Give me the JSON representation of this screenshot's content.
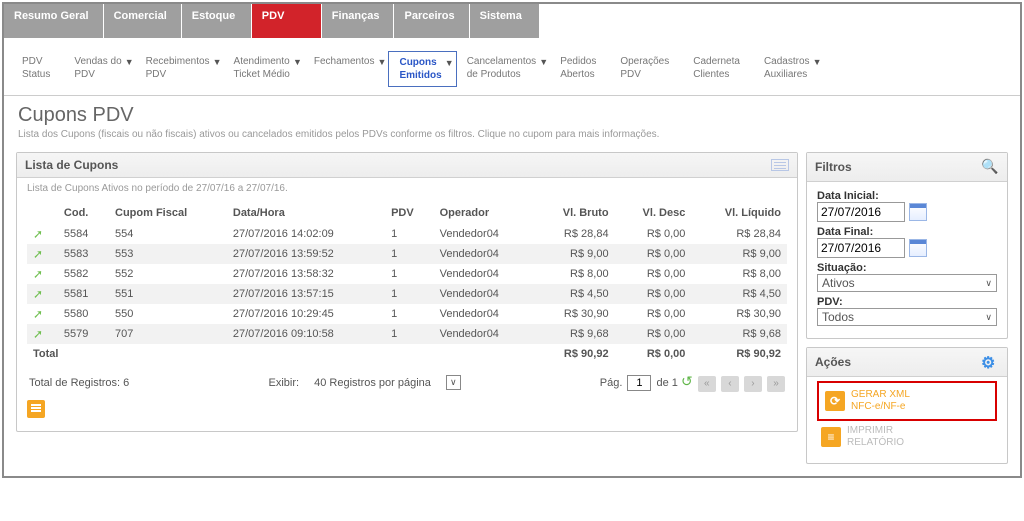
{
  "topnav": {
    "tabs": [
      "Resumo Geral",
      "Comercial",
      "Estoque",
      "PDV",
      "Finanças",
      "Parceiros",
      "Sistema"
    ],
    "active_index": 3
  },
  "subnav": {
    "items": [
      {
        "l1": "PDV",
        "l2": "Status",
        "arrow": false
      },
      {
        "l1": "Vendas do",
        "l2": "PDV",
        "arrow": true
      },
      {
        "l1": "Recebimentos",
        "l2": "PDV",
        "arrow": true
      },
      {
        "l1": "Atendimento",
        "l2": "Ticket Médio",
        "arrow": true
      },
      {
        "l1": "Fechamentos",
        "l2": "",
        "arrow": true
      },
      {
        "l1": "Cupons",
        "l2": "Emitidos",
        "arrow": true,
        "active": true
      },
      {
        "l1": "Cancelamentos",
        "l2": "de Produtos",
        "arrow": true
      },
      {
        "l1": "Pedidos",
        "l2": "Abertos",
        "arrow": false
      },
      {
        "l1": "Operações",
        "l2": "PDV",
        "arrow": false
      },
      {
        "l1": "Caderneta",
        "l2": "Clientes",
        "arrow": false
      },
      {
        "l1": "Cadastros",
        "l2": "Auxiliares",
        "arrow": true
      }
    ]
  },
  "page": {
    "title": "Cupons PDV",
    "subtitle": "Lista dos Cupons (fiscais ou não fiscais) ativos ou cancelados emitidos pelos PDVs conforme os filtros. Clique no cupom para mais informações."
  },
  "list_panel": {
    "title": "Lista de Cupons",
    "subtitle": "Lista de Cupons Ativos no período de 27/07/16 a 27/07/16.",
    "columns": [
      "",
      "Cod.",
      "Cupom Fiscal",
      "Data/Hora",
      "PDV",
      "Operador",
      "Vl. Bruto",
      "Vl. Desc",
      "Vl. Líquido"
    ],
    "rows": [
      {
        "cod": "5584",
        "fiscal": "554",
        "data": "27/07/2016 14:02:09",
        "pdv": "1",
        "op": "Vendedor04",
        "bruto": "R$ 28,84",
        "desc": "R$ 0,00",
        "liq": "R$ 28,84"
      },
      {
        "cod": "5583",
        "fiscal": "553",
        "data": "27/07/2016 13:59:52",
        "pdv": "1",
        "op": "Vendedor04",
        "bruto": "R$ 9,00",
        "desc": "R$ 0,00",
        "liq": "R$ 9,00"
      },
      {
        "cod": "5582",
        "fiscal": "552",
        "data": "27/07/2016 13:58:32",
        "pdv": "1",
        "op": "Vendedor04",
        "bruto": "R$ 8,00",
        "desc": "R$ 0,00",
        "liq": "R$ 8,00"
      },
      {
        "cod": "5581",
        "fiscal": "551",
        "data": "27/07/2016 13:57:15",
        "pdv": "1",
        "op": "Vendedor04",
        "bruto": "R$ 4,50",
        "desc": "R$ 0,00",
        "liq": "R$ 4,50"
      },
      {
        "cod": "5580",
        "fiscal": "550",
        "data": "27/07/2016 10:29:45",
        "pdv": "1",
        "op": "Vendedor04",
        "bruto": "R$ 30,90",
        "desc": "R$ 0,00",
        "liq": "R$ 30,90"
      },
      {
        "cod": "5579",
        "fiscal": "707",
        "data": "27/07/2016 09:10:58",
        "pdv": "1",
        "op": "Vendedor04",
        "bruto": "R$ 9,68",
        "desc": "R$ 0,00",
        "liq": "R$ 9,68"
      }
    ],
    "total_label": "Total",
    "totals": {
      "bruto": "R$ 90,92",
      "desc": "R$ 0,00",
      "liq": "R$ 90,92"
    },
    "footer": {
      "total_reg_label": "Total de Registros:",
      "total_reg_value": "6",
      "exibir_label": "Exibir:",
      "exibir_value": "40 Registros por página",
      "pag_label": "Pág.",
      "pag_value": "1",
      "pag_of": "de 1"
    }
  },
  "filtros": {
    "title": "Filtros",
    "data_inicial_label": "Data Inicial:",
    "data_inicial_value": "27/07/2016",
    "data_final_label": "Data Final:",
    "data_final_value": "27/07/2016",
    "situacao_label": "Situação:",
    "situacao_value": "Ativos",
    "pdv_label": "PDV:",
    "pdv_value": "Todos"
  },
  "acoes": {
    "title": "Ações",
    "gerar_xml_l1": "GERAR XML",
    "gerar_xml_l2": "NFC-e/NF-e",
    "imprimir_l1": "IMPRIMIR",
    "imprimir_l2": "RELATÓRIO"
  }
}
